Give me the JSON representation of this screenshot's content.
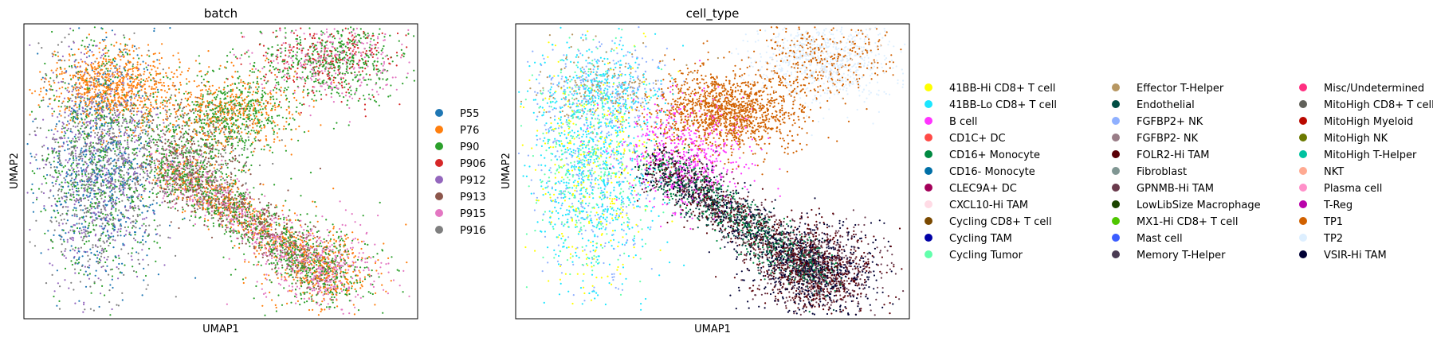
{
  "chart_data": [
    {
      "type": "scatter",
      "title": "batch",
      "xlabel": "UMAP1",
      "ylabel": "UMAP2",
      "grid": false,
      "legend_position": "right",
      "series": [
        {
          "name": "P55",
          "color": "#1f77b4"
        },
        {
          "name": "P76",
          "color": "#ff7f0e"
        },
        {
          "name": "P90",
          "color": "#2ca02c"
        },
        {
          "name": "P906",
          "color": "#d62728"
        },
        {
          "name": "P912",
          "color": "#9467bd"
        },
        {
          "name": "P913",
          "color": "#8c564b"
        },
        {
          "name": "P915",
          "color": "#e377c2"
        },
        {
          "name": "P916",
          "color": "#7f7f7f"
        }
      ]
    },
    {
      "type": "scatter",
      "title": "cell_type",
      "xlabel": "UMAP1",
      "ylabel": "UMAP2",
      "grid": false,
      "legend_position": "right",
      "series": [
        {
          "name": "41BB-Hi CD8+ T cell",
          "color": "#ffff00"
        },
        {
          "name": "41BB-Lo CD8+ T cell",
          "color": "#1ce6ff"
        },
        {
          "name": "B cell",
          "color": "#ff34ff"
        },
        {
          "name": "CD1C+ DC",
          "color": "#ff4a46"
        },
        {
          "name": "CD16+ Monocyte",
          "color": "#008941"
        },
        {
          "name": "CD16- Monocyte",
          "color": "#006fa6"
        },
        {
          "name": "CLEC9A+ DC",
          "color": "#a30059"
        },
        {
          "name": "CXCL10-Hi TAM",
          "color": "#ffdbe5"
        },
        {
          "name": "Cycling CD8+ T cell",
          "color": "#7a4900"
        },
        {
          "name": "Cycling TAM",
          "color": "#0000a6"
        },
        {
          "name": "Cycling Tumor",
          "color": "#63ffac"
        },
        {
          "name": "Effector T-Helper",
          "color": "#b79762"
        },
        {
          "name": "Endothelial",
          "color": "#004d43"
        },
        {
          "name": "FGFBP2+ NK",
          "color": "#8fb0ff"
        },
        {
          "name": "FGFBP2- NK",
          "color": "#997d87"
        },
        {
          "name": "FOLR2-Hi TAM",
          "color": "#5a0007"
        },
        {
          "name": "Fibroblast",
          "color": "#809693"
        },
        {
          "name": "GPNMB-Hi TAM",
          "color": "#6a3a4c"
        },
        {
          "name": "LowLibSize Macrophage",
          "color": "#1b4400"
        },
        {
          "name": "MX1-Hi CD8+ T cell",
          "color": "#4fc601"
        },
        {
          "name": "Mast cell",
          "color": "#3b5dff"
        },
        {
          "name": "Memory T-Helper",
          "color": "#4a3b53"
        },
        {
          "name": "Misc/Undetermined",
          "color": "#ff2f80"
        },
        {
          "name": "MitoHigh CD8+ T cell",
          "color": "#61615a"
        },
        {
          "name": "MitoHigh Myeloid",
          "color": "#ba0900"
        },
        {
          "name": "MitoHigh NK",
          "color": "#6b7900"
        },
        {
          "name": "MitoHigh T-Helper",
          "color": "#00c2a0"
        },
        {
          "name": "NKT",
          "color": "#ffaa92"
        },
        {
          "name": "Plasma cell",
          "color": "#ff90c9"
        },
        {
          "name": "T-Reg",
          "color": "#b903aa"
        },
        {
          "name": "TP1",
          "color": "#d16100"
        },
        {
          "name": "TP2",
          "color": "#ddefff"
        },
        {
          "name": "VSIR-Hi TAM",
          "color": "#000035"
        }
      ]
    }
  ]
}
